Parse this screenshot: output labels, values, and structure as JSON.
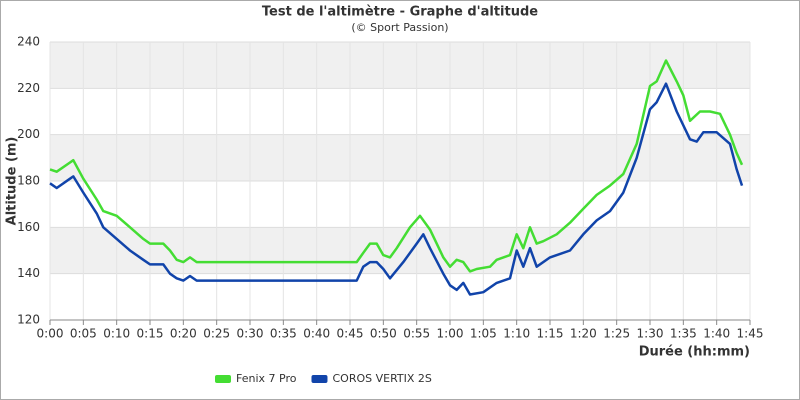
{
  "chart_data": {
    "type": "line",
    "title": "Test de l'altimètre - Graphe d'altitude",
    "subtitle": "(© Sport Passion)",
    "x_label": "Durée (hh:mm)",
    "y_label": "Altitude (m)",
    "xlim": [
      0,
      105
    ],
    "ylim": [
      120,
      240
    ],
    "xticks": [
      {
        "value": 0,
        "label": "0:00"
      },
      {
        "value": 5,
        "label": "0:05"
      },
      {
        "value": 10,
        "label": "0:10"
      },
      {
        "value": 15,
        "label": "0:15"
      },
      {
        "value": 20,
        "label": "0:20"
      },
      {
        "value": 25,
        "label": "0:25"
      },
      {
        "value": 30,
        "label": "0:30"
      },
      {
        "value": 35,
        "label": "0:35"
      },
      {
        "value": 40,
        "label": "0:40"
      },
      {
        "value": 45,
        "label": "0:45"
      },
      {
        "value": 50,
        "label": "0:50"
      },
      {
        "value": 55,
        "label": "0:55"
      },
      {
        "value": 60,
        "label": "1:00"
      },
      {
        "value": 65,
        "label": "1:05"
      },
      {
        "value": 70,
        "label": "1:10"
      },
      {
        "value": 75,
        "label": "1:15"
      },
      {
        "value": 80,
        "label": "1:20"
      },
      {
        "value": 85,
        "label": "1:25"
      },
      {
        "value": 90,
        "label": "1:30"
      },
      {
        "value": 95,
        "label": "1:35"
      },
      {
        "value": 100,
        "label": "1:40"
      },
      {
        "value": 105,
        "label": "1:45"
      }
    ],
    "yticks": [
      120,
      140,
      160,
      180,
      200,
      220,
      240
    ],
    "grid": true,
    "legend": "bottom",
    "series": [
      {
        "name": "Fenix 7 Pro",
        "color": "#44dd33",
        "x": [
          0,
          1,
          3,
          3.5,
          5,
          7,
          8,
          10,
          12,
          14,
          15,
          17,
          18,
          19,
          20,
          21,
          22,
          25,
          30,
          35,
          40,
          46,
          47,
          48,
          49,
          50,
          51,
          52,
          54,
          55.5,
          57,
          58,
          59,
          60,
          61,
          62,
          63,
          64,
          66,
          67,
          69,
          70,
          71,
          72,
          73,
          74,
          76,
          78,
          80,
          82,
          84,
          86,
          88,
          90,
          91,
          92.4,
          94,
          95,
          96,
          97.5,
          99,
          100.5,
          102,
          103,
          103.8
        ],
        "values": [
          185,
          184,
          188,
          189,
          181,
          172,
          167,
          165,
          160,
          155,
          153,
          153,
          150,
          146,
          145,
          147,
          145,
          145,
          145,
          145,
          145,
          145,
          149,
          153,
          153,
          148,
          147,
          151,
          160,
          165,
          159,
          153,
          147,
          143,
          146,
          145,
          141,
          142,
          143,
          146,
          148,
          157,
          151,
          160,
          153,
          154,
          157,
          162,
          168,
          174,
          178,
          183,
          196,
          221,
          223,
          232,
          223,
          217,
          206,
          210,
          210,
          209,
          200,
          192,
          187
        ]
      },
      {
        "name": "COROS VERTIX 2S",
        "color": "#1144aa",
        "x": [
          0,
          1,
          3,
          3.5,
          5,
          7,
          8,
          10,
          12,
          14,
          15,
          17,
          18,
          19,
          20,
          21,
          22,
          25,
          30,
          35,
          40,
          46,
          47,
          48,
          49,
          50,
          51,
          53,
          55,
          56,
          57,
          59,
          60,
          61,
          62,
          63,
          65,
          67,
          69,
          70,
          71,
          72,
          73,
          75,
          78,
          80,
          82,
          84,
          86,
          88,
          90,
          91,
          92.4,
          94,
          96,
          97,
          98,
          100,
          102,
          103,
          103.8
        ],
        "values": [
          179,
          177,
          181,
          182,
          175,
          166,
          160,
          155,
          150,
          146,
          144,
          144,
          140,
          138,
          137,
          139,
          137,
          137,
          137,
          137,
          137,
          137,
          143,
          145,
          145,
          142,
          138,
          145,
          153,
          157,
          151,
          140,
          135,
          133,
          136,
          131,
          132,
          136,
          138,
          150,
          143,
          151,
          143,
          147,
          150,
          157,
          163,
          167,
          175,
          190,
          211,
          214,
          222,
          210,
          198,
          197,
          201,
          201,
          196,
          185,
          178
        ]
      }
    ]
  }
}
